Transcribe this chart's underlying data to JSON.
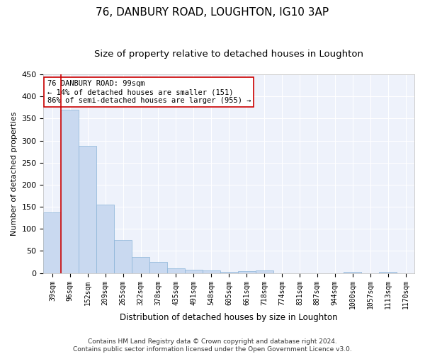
{
  "title": "76, DANBURY ROAD, LOUGHTON, IG10 3AP",
  "subtitle": "Size of property relative to detached houses in Loughton",
  "xlabel": "Distribution of detached houses by size in Loughton",
  "ylabel": "Number of detached properties",
  "bar_color": "#c9d9f0",
  "bar_edge_color": "#8ab4d8",
  "background_color": "#eef2fb",
  "grid_color": "#ffffff",
  "categories": [
    "39sqm",
    "96sqm",
    "152sqm",
    "209sqm",
    "265sqm",
    "322sqm",
    "378sqm",
    "435sqm",
    "491sqm",
    "548sqm",
    "605sqm",
    "661sqm",
    "718sqm",
    "774sqm",
    "831sqm",
    "887sqm",
    "944sqm",
    "1000sqm",
    "1057sqm",
    "1113sqm",
    "1170sqm"
  ],
  "values": [
    137,
    370,
    288,
    155,
    74,
    37,
    25,
    10,
    8,
    6,
    3,
    4,
    5,
    0,
    0,
    0,
    0,
    3,
    0,
    3,
    0
  ],
  "vline_x": 0.5,
  "vline_color": "#cc0000",
  "annotation_line1": "76 DANBURY ROAD: 99sqm",
  "annotation_line2": "← 14% of detached houses are smaller (151)",
  "annotation_line3": "86% of semi-detached houses are larger (955) →",
  "annotation_box_color": "#ffffff",
  "annotation_box_edge_color": "#cc0000",
  "ylim": [
    0,
    450
  ],
  "yticks": [
    0,
    50,
    100,
    150,
    200,
    250,
    300,
    350,
    400,
    450
  ],
  "footer_line1": "Contains HM Land Registry data © Crown copyright and database right 2024.",
  "footer_line2": "Contains public sector information licensed under the Open Government Licence v3.0.",
  "title_fontsize": 11,
  "subtitle_fontsize": 9.5,
  "annotation_fontsize": 7.5,
  "footer_fontsize": 6.5,
  "ylabel_fontsize": 8,
  "xlabel_fontsize": 8.5,
  "tick_fontsize": 7
}
